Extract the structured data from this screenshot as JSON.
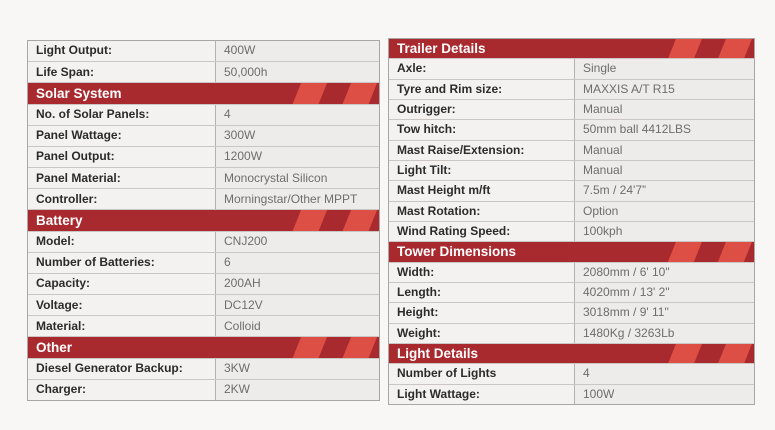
{
  "theme": {
    "page_bg": "#f8f7f5",
    "header_bg": "#a8292e",
    "header_stripe": "#dd4f45",
    "header_text": "#ffffff",
    "label_color": "#2b2b2b",
    "value_color": "#6d6d6d",
    "label_cell_bg": "#f3f2f0",
    "value_cell_bg": "#edecea",
    "border_color": "#a9a6a3",
    "row_line": "#c9c6c3",
    "divider_color": "#b4b1ae"
  },
  "left_table": {
    "items": [
      {
        "type": "row",
        "label": "Light Output:",
        "value": "400W"
      },
      {
        "type": "row",
        "label": "Life Span:",
        "value": "50,000h"
      },
      {
        "type": "header",
        "text": "Solar System"
      },
      {
        "type": "row",
        "label": "No. of Solar Panels:",
        "value": "4"
      },
      {
        "type": "row",
        "label": "Panel Wattage:",
        "value": "300W"
      },
      {
        "type": "row",
        "label": "Panel Output:",
        "value": "1200W"
      },
      {
        "type": "row",
        "label": "Panel Material:",
        "value": "Monocrystal Silicon"
      },
      {
        "type": "row",
        "label": "Controller:",
        "value": "Morningstar/Other MPPT"
      },
      {
        "type": "header",
        "text": "Battery"
      },
      {
        "type": "row",
        "label": "Model:",
        "value": "CNJ200"
      },
      {
        "type": "row",
        "label": "Number of Batteries:",
        "value": "6"
      },
      {
        "type": "row",
        "label": "Capacity:",
        "value": "200AH"
      },
      {
        "type": "row",
        "label": "Voltage:",
        "value": "DC12V"
      },
      {
        "type": "row",
        "label": "Material:",
        "value": "Colloid"
      },
      {
        "type": "header",
        "text": "Other"
      },
      {
        "type": "row",
        "label": "Diesel Generator Backup:",
        "value": "3KW"
      },
      {
        "type": "row",
        "label": "Charger:",
        "value": "2KW"
      }
    ]
  },
  "right_table": {
    "items": [
      {
        "type": "header",
        "text": "Trailer Details"
      },
      {
        "type": "row",
        "label": "Axle:",
        "value": "Single"
      },
      {
        "type": "row",
        "label": "Tyre and Rim size:",
        "value": "MAXXIS A/T R15"
      },
      {
        "type": "row",
        "label": "Outrigger:",
        "value": "Manual"
      },
      {
        "type": "row",
        "label": "Tow hitch:",
        "value": "50mm ball 4412LBS"
      },
      {
        "type": "row",
        "label": "Mast Raise/Extension:",
        "value": "Manual"
      },
      {
        "type": "row",
        "label": "Light Tilt:",
        "value": "Manual"
      },
      {
        "type": "row",
        "label": "Mast Height m/ft",
        "value": "7.5m / 24'7”"
      },
      {
        "type": "row",
        "label": "Mast Rotation:",
        "value": "Option"
      },
      {
        "type": "row",
        "label": "Wind Rating Speed:",
        "value": "100kph"
      },
      {
        "type": "header",
        "text": "Tower Dimensions"
      },
      {
        "type": "row",
        "label": "Width:",
        "value": "2080mm / 6' 10\""
      },
      {
        "type": "row",
        "label": "Length:",
        "value": "4020mm / 13' 2\""
      },
      {
        "type": "row",
        "label": "Height:",
        "value": "3018mm / 9' 11\""
      },
      {
        "type": "row",
        "label": "Weight:",
        "value": "1480Kg / 3263Lb"
      },
      {
        "type": "header",
        "text": "Light Details"
      },
      {
        "type": "row",
        "label": "Number of Lights",
        "value": "4"
      },
      {
        "type": "row",
        "label": "Light Wattage:",
        "value": "100W"
      }
    ]
  }
}
